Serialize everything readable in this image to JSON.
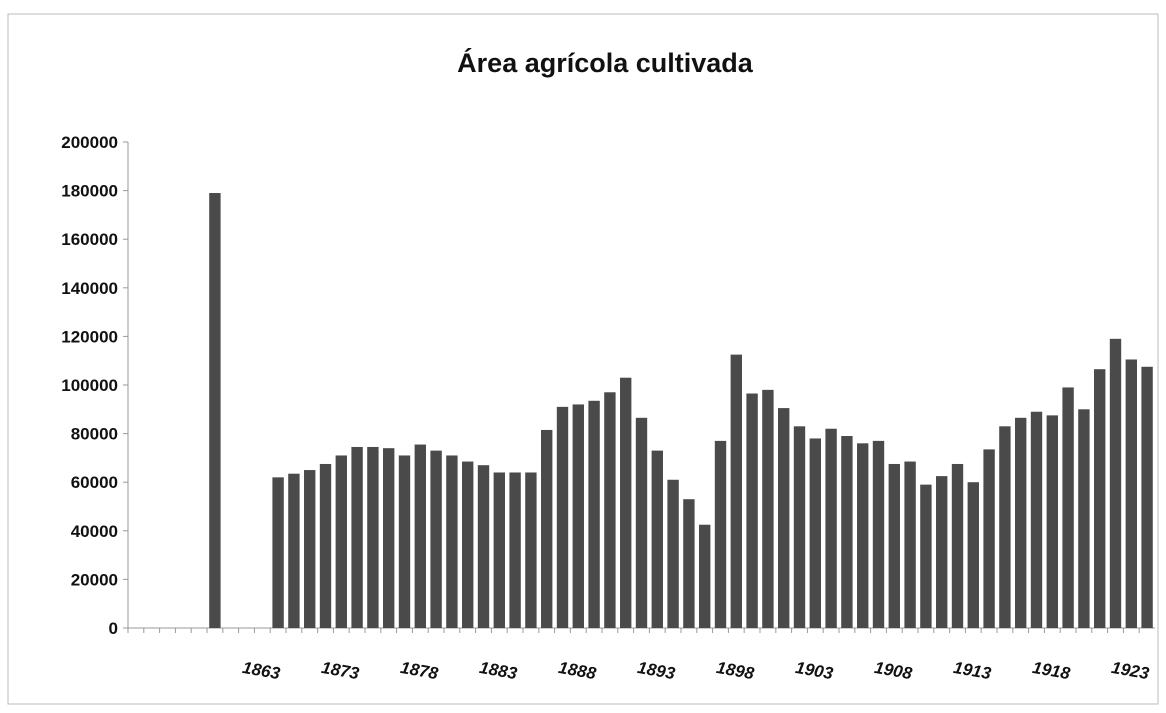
{
  "chart_data": {
    "type": "bar",
    "title": "Área agrícola cultivada",
    "categories": [
      null,
      null,
      null,
      null,
      null,
      null,
      null,
      null,
      "1863",
      null,
      null,
      null,
      null,
      "1873",
      null,
      null,
      null,
      null,
      "1878",
      null,
      null,
      null,
      null,
      "1883",
      null,
      null,
      null,
      null,
      "1888",
      null,
      null,
      null,
      null,
      "1893",
      null,
      null,
      null,
      null,
      "1898",
      null,
      null,
      null,
      null,
      "1903",
      null,
      null,
      null,
      null,
      "1908",
      null,
      null,
      null,
      null,
      "1913",
      null,
      null,
      null,
      null,
      "1918",
      null,
      null,
      null,
      null,
      "1923",
      null
    ],
    "values": [
      null,
      null,
      null,
      null,
      null,
      179000,
      null,
      null,
      null,
      62000,
      63500,
      65000,
      67500,
      71000,
      74500,
      74500,
      74000,
      71000,
      75500,
      73000,
      71000,
      68500,
      67000,
      64000,
      64000,
      64000,
      81500,
      91000,
      92000,
      93500,
      97000,
      103000,
      86500,
      73000,
      61000,
      53000,
      42500,
      77000,
      112500,
      96500,
      98000,
      90500,
      83000,
      78000,
      82000,
      79000,
      76000,
      77000,
      67500,
      68500,
      59000,
      62500,
      67500,
      60000,
      73500,
      83000,
      86500,
      89000,
      87500,
      99000,
      90000,
      106500,
      119000,
      110500,
      107500
    ],
    "color": "#4a4a4a",
    "ylim": [
      0,
      200000
    ],
    "yticks": [
      0,
      20000,
      40000,
      60000,
      80000,
      100000,
      120000,
      140000,
      160000,
      180000,
      200000
    ]
  }
}
